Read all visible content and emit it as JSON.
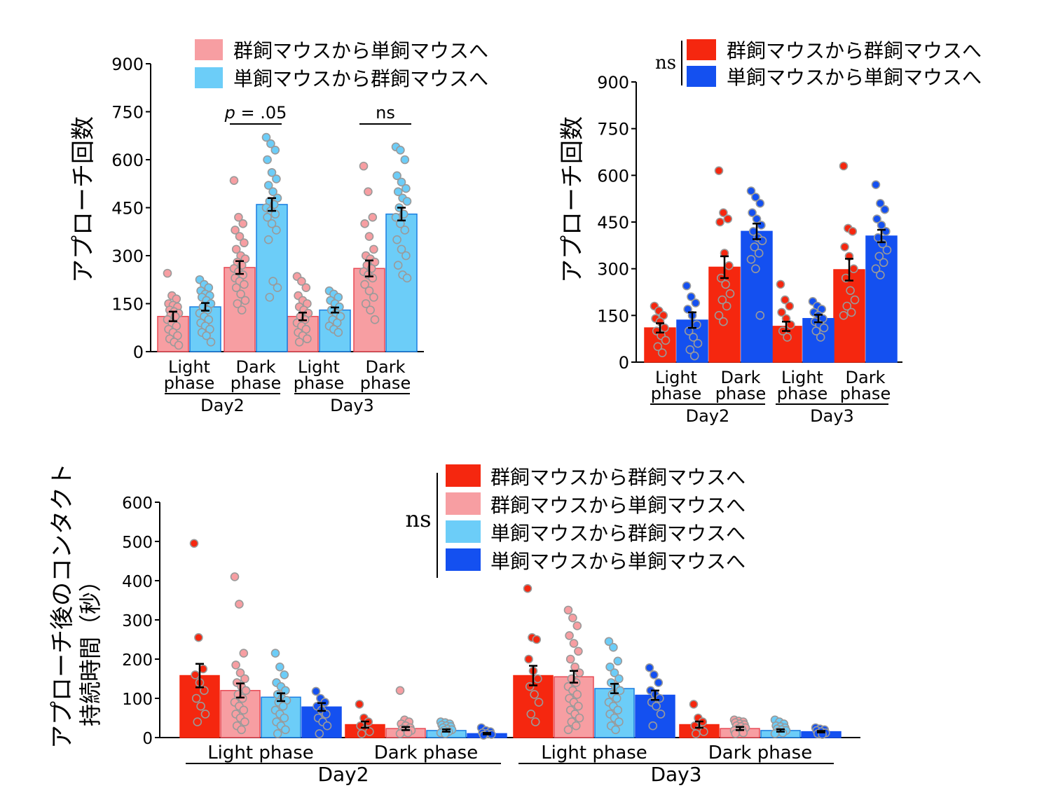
{
  "colors": {
    "group_to_group": "#f5270f",
    "group_to_single": "#f79ea2",
    "single_to_group": "#6ccdf8",
    "single_to_single": "#1450f0",
    "dot_outline": "#9a9a9a",
    "axis": "#000000"
  },
  "chart_data": [
    {
      "id": "top-left",
      "type": "bar",
      "ylabel": "アプローチ回数",
      "ylim": [
        0,
        900
      ],
      "yticks": [
        "0",
        "150",
        "300",
        "450",
        "600",
        "750",
        "900"
      ],
      "categories": [
        {
          "label_line1": "Light",
          "label_line2": "phase",
          "day": "Day2"
        },
        {
          "label_line1": "Dark",
          "label_line2": "phase",
          "day": "Day2"
        },
        {
          "label_line1": "Light",
          "label_line2": "phase",
          "day": "Day3"
        },
        {
          "label_line1": "Dark",
          "label_line2": "phase",
          "day": "Day3"
        }
      ],
      "days": [
        "Day2",
        "Day3"
      ],
      "legend": [
        {
          "label": "群飼マウスから単飼マウスへ",
          "color_key": "group_to_single"
        },
        {
          "label": "単飼マウスから群飼マウスへ",
          "color_key": "single_to_group"
        }
      ],
      "series": [
        {
          "name": "群飼マウスから単飼マウスへ",
          "color_key": "group_to_single",
          "values": [
            110,
            263,
            110,
            260
          ],
          "errors": [
            15,
            20,
            12,
            25
          ],
          "points": [
            [
              245,
              175,
              165,
              150,
              145,
              140,
              130,
              125,
              120,
              115,
              110,
              100,
              90,
              80,
              70,
              60,
              50,
              40,
              30,
              20
            ],
            [
              535,
              420,
              400,
              380,
              360,
              340,
              320,
              300,
              290,
              280,
              270,
              260,
              250,
              240,
              230,
              220,
              210,
              200,
              180,
              160,
              150,
              130
            ],
            [
              235,
              220,
              200,
              175,
              160,
              150,
              140,
              130,
              120,
              110,
              100,
              90,
              80,
              70,
              60,
              50,
              40,
              30
            ],
            [
              580,
              500,
              420,
              400,
              360,
              320,
              300,
              290,
              280,
              270,
              260,
              250,
              240,
              230,
              210,
              190,
              170,
              150,
              130,
              100
            ]
          ]
        },
        {
          "name": "単飼マウスから群飼マウスへ",
          "color_key": "single_to_group",
          "values": [
            140,
            460,
            130,
            430
          ],
          "errors": [
            12,
            20,
            8,
            20
          ],
          "points": [
            [
              225,
              210,
              200,
              190,
              180,
              175,
              170,
              160,
              150,
              140,
              130,
              120,
              110,
              100,
              90,
              80,
              70,
              60,
              50,
              30
            ],
            [
              670,
              650,
              630,
              600,
              560,
              540,
              520,
              500,
              480,
              470,
              460,
              450,
              440,
              430,
              420,
              400,
              380,
              350,
              220,
              200,
              170
            ],
            [
              190,
              180,
              170,
              160,
              150,
              140,
              130,
              120,
              110,
              100,
              90,
              80,
              70,
              60
            ],
            [
              640,
              630,
              600,
              550,
              530,
              510,
              500,
              480,
              470,
              450,
              430,
              420,
              400,
              380,
              350,
              320,
              300,
              270,
              240,
              230
            ]
          ]
        }
      ],
      "annotations": [
        {
          "text_pre": "p",
          "text_post": " = .05",
          "category": 1
        },
        {
          "text_pre": "ns",
          "text_post": "",
          "category": 3
        }
      ]
    },
    {
      "id": "top-right",
      "type": "bar",
      "ylabel": "アプローチ回数",
      "ylim": [
        0,
        900
      ],
      "yticks": [
        "0",
        "150",
        "300",
        "450",
        "600",
        "750",
        "900"
      ],
      "categories": [
        {
          "label_line1": "Light",
          "label_line2": "phase",
          "day": "Day2"
        },
        {
          "label_line1": "Dark",
          "label_line2": "phase",
          "day": "Day2"
        },
        {
          "label_line1": "Light",
          "label_line2": "phase",
          "day": "Day3"
        },
        {
          "label_line1": "Dark",
          "label_line2": "phase",
          "day": "Day3"
        }
      ],
      "days": [
        "Day2",
        "Day3"
      ],
      "legend_ns": "ns",
      "legend": [
        {
          "label": "群飼マウスから群飼マウスへ",
          "color_key": "group_to_group"
        },
        {
          "label": "単飼マウスから単飼マウスへ",
          "color_key": "single_to_single"
        }
      ],
      "series": [
        {
          "name": "群飼マウスから群飼マウスへ",
          "color_key": "group_to_group",
          "values": [
            110,
            305,
            115,
            297
          ],
          "errors": [
            15,
            35,
            15,
            35
          ],
          "points": [
            [
              180,
              165,
              150,
              140,
              130,
              110,
              100,
              85,
              70,
              50,
              30
            ],
            [
              615,
              480,
              460,
              450,
              350,
              310,
              270,
              250,
              220,
              200,
              180,
              150,
              130
            ],
            [
              250,
              200,
              180,
              160,
              140,
              120,
              100,
              80
            ],
            [
              630,
              430,
              420,
              370,
              340,
              300,
              270,
              230,
              200,
              180,
              160,
              150
            ]
          ]
        },
        {
          "name": "単飼マウスから単飼マウスへ",
          "color_key": "single_to_single",
          "values": [
            135,
            420,
            140,
            405
          ],
          "errors": [
            25,
            25,
            12,
            20
          ],
          "points": [
            [
              245,
              210,
              190,
              170,
              150,
              120,
              100,
              80,
              60,
              40,
              20
            ],
            [
              550,
              530,
              510,
              480,
              460,
              440,
              420,
              400,
              390,
              370,
              350,
              330,
              300,
              150
            ],
            [
              195,
              180,
              170,
              160,
              150,
              140,
              130,
              120,
              110,
              100,
              80
            ],
            [
              570,
              510,
              490,
              460,
              440,
              420,
              400,
              380,
              360,
              340,
              320,
              300,
              280
            ]
          ]
        }
      ]
    },
    {
      "id": "bottom",
      "type": "bar",
      "ylabel_line1": "アプローチ後のコンタクト",
      "ylabel_line2": "持続時間（秒）",
      "ylim": [
        0,
        650
      ],
      "yticks": [
        "0",
        "100",
        "200",
        "300",
        "400",
        "500",
        "600"
      ],
      "categories": [
        {
          "label": "Light phase",
          "day": "Day2"
        },
        {
          "label": "Dark phase",
          "day": "Day2"
        },
        {
          "label": "Light phase",
          "day": "Day3"
        },
        {
          "label": "Dark phase",
          "day": "Day3"
        }
      ],
      "days": [
        "Day2",
        "Day3"
      ],
      "legend_ns": "ns",
      "legend": [
        {
          "label": "群飼マウスから群飼マウスへ",
          "color_key": "group_to_group"
        },
        {
          "label": "群飼マウスから単飼マウスへ",
          "color_key": "group_to_single"
        },
        {
          "label": "単飼マウスから群飼マウスへ",
          "color_key": "single_to_group"
        },
        {
          "label": "単飼マウスから単飼マウスへ",
          "color_key": "single_to_single"
        }
      ],
      "series": [
        {
          "name": "群飼マウスから群飼マウスへ",
          "color_key": "group_to_group",
          "values": [
            158,
            33,
            158,
            33
          ],
          "errors": [
            30,
            8,
            25,
            8
          ],
          "points": [
            [
              495,
              255,
              175,
              160,
              140,
              120,
              100,
              80,
              60,
              40
            ],
            [
              85,
              50,
              40,
              30,
              20,
              15,
              10
            ],
            [
              380,
              255,
              250,
              200,
              170,
              150,
              130,
              110,
              90,
              60,
              40
            ],
            [
              85,
              50,
              40,
              30,
              20,
              15,
              10
            ]
          ]
        },
        {
          "name": "群飼マウスから単飼マウスへ",
          "color_key": "group_to_single",
          "values": [
            120,
            23,
            155,
            23
          ],
          "errors": [
            18,
            4,
            15,
            4
          ],
          "points": [
            [
              410,
              340,
              215,
              185,
              165,
              150,
              140,
              130,
              120,
              110,
              100,
              90,
              80,
              70,
              60,
              50,
              40,
              30,
              20
            ],
            [
              120,
              45,
              40,
              35,
              30,
              25,
              22,
              20,
              18,
              15,
              12,
              10
            ],
            [
              325,
              305,
              285,
              260,
              240,
              220,
              200,
              180,
              165,
              150,
              140,
              130,
              120,
              110,
              100,
              90,
              80,
              70,
              60,
              50,
              40,
              30,
              20
            ],
            [
              45,
              42,
              40,
              38,
              35,
              33,
              30,
              28,
              25,
              22,
              20,
              18,
              15,
              12,
              10
            ]
          ]
        },
        {
          "name": "単飼マウスから群飼マウスへ",
          "color_key": "single_to_group",
          "values": [
            103,
            18,
            125,
            18
          ],
          "errors": [
            10,
            3,
            12,
            3
          ],
          "points": [
            [
              215,
              180,
              160,
              140,
              130,
              120,
              110,
              100,
              95,
              90,
              80,
              70,
              60,
              50,
              40,
              30,
              20,
              10
            ],
            [
              40,
              38,
              35,
              32,
              30,
              28,
              25,
              22,
              20,
              18,
              15,
              12,
              10
            ],
            [
              245,
              230,
              195,
              180,
              165,
              150,
              140,
              130,
              120,
              110,
              100,
              90,
              80,
              70,
              60,
              50,
              40,
              30,
              20
            ],
            [
              45,
              40,
              35,
              30,
              28,
              25,
              22,
              20,
              18,
              15,
              12,
              10
            ]
          ]
        },
        {
          "name": "単飼マウスから単飼マウスへ",
          "color_key": "single_to_single",
          "values": [
            78,
            10,
            108,
            15
          ],
          "errors": [
            10,
            2,
            12,
            2
          ],
          "points": [
            [
              118,
              100,
              90,
              80,
              70,
              60,
              50,
              40,
              30,
              10
            ],
            [
              25,
              18,
              15,
              12,
              10,
              8,
              6
            ],
            [
              178,
              160,
              140,
              120,
              110,
              100,
              90,
              80,
              60,
              30
            ],
            [
              25,
              22,
              20,
              18,
              15,
              12,
              10,
              8
            ]
          ]
        }
      ]
    }
  ]
}
